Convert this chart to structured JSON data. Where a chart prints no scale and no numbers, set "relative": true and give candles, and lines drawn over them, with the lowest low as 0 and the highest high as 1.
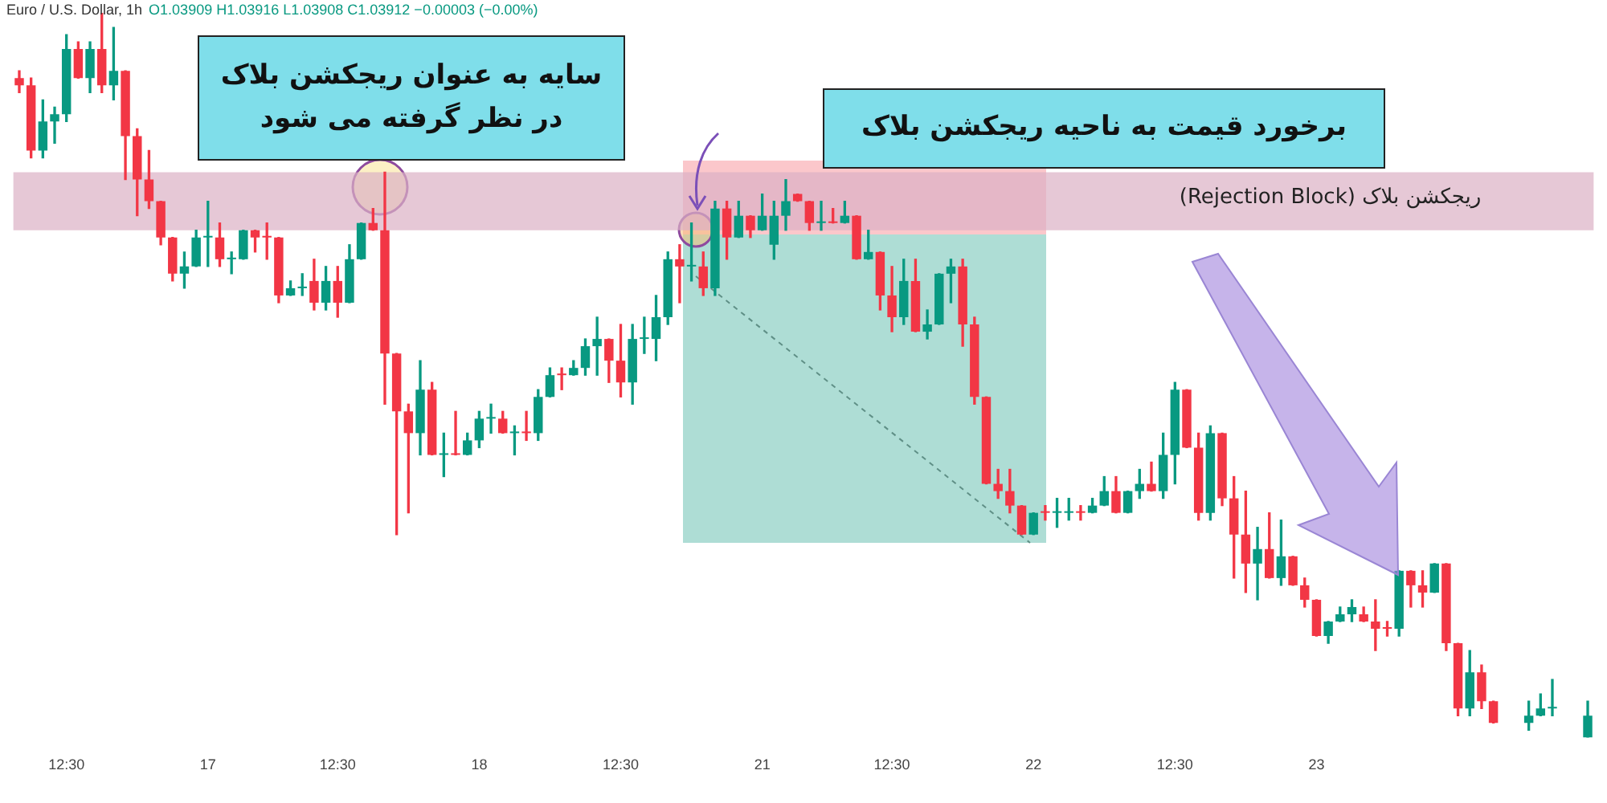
{
  "chart_data": {
    "type": "candlestick",
    "relative": true,
    "title": "Euro / U.S. Dollar, 1h",
    "subtitle": "O1.03909 H1.03916 L1.03908 C1.03912 −0.00003 (−0.00%)",
    "annotations": [
      "سایه به عنوان ریجکشن بلاک\nدر نظر گرفته می شود",
      "برخورد قیمت به ناحیه ریجکشن بلاک"
    ],
    "bands": [
      {
        "axis": "y",
        "from": 0.7,
        "to": 0.78,
        "label": "ریجکشن بلاک (Rejection Block)",
        "color": "#dcb0c4"
      }
    ],
    "categories": [
      null,
      null,
      null,
      null,
      "12:30",
      null,
      null,
      null,
      null,
      null,
      null,
      null,
      null,
      null,
      null,
      null,
      "17",
      null,
      null,
      null,
      null,
      null,
      null,
      null,
      null,
      null,
      null,
      "12:30",
      null,
      null,
      null,
      null,
      null,
      null,
      null,
      null,
      null,
      null,
      null,
      "18",
      null,
      null,
      null,
      null,
      null,
      null,
      null,
      null,
      null,
      null,
      null,
      "12:30",
      null,
      null,
      null,
      null,
      null,
      null,
      null,
      null,
      null,
      null,
      null,
      "21",
      null,
      null,
      null,
      null,
      null,
      null,
      null,
      null,
      null,
      null,
      "12:30",
      null,
      null,
      null,
      null,
      null,
      null,
      null,
      null,
      null,
      null,
      null,
      "22",
      null,
      null,
      null,
      null,
      null,
      null,
      null,
      null,
      null,
      null,
      null,
      "12:30",
      null,
      null,
      null,
      null,
      null,
      null,
      null,
      null,
      null,
      null,
      null,
      "23",
      null,
      null,
      null,
      null,
      null,
      null,
      null,
      null,
      null,
      null,
      null,
      null,
      null,
      null,
      null,
      null,
      null,
      null,
      null,
      null,
      null,
      null,
      null
    ],
    "ohlc": [
      [
        0.91,
        0.92,
        0.89,
        0.9
      ],
      [
        0.9,
        0.91,
        0.8,
        0.81
      ],
      [
        0.81,
        0.88,
        0.8,
        0.85
      ],
      [
        0.85,
        0.87,
        0.82,
        0.86
      ],
      [
        0.86,
        0.97,
        0.85,
        0.95
      ],
      [
        0.95,
        0.96,
        0.91,
        0.91
      ],
      [
        0.91,
        0.96,
        0.89,
        0.95
      ],
      [
        0.95,
        1.0,
        0.89,
        0.9
      ],
      [
        0.9,
        0.98,
        0.88,
        0.92
      ],
      [
        0.92,
        0.92,
        0.77,
        0.83
      ],
      [
        0.83,
        0.84,
        0.72,
        0.77
      ],
      [
        0.77,
        0.81,
        0.73,
        0.74
      ],
      [
        0.74,
        0.74,
        0.68,
        0.69
      ],
      [
        0.69,
        0.69,
        0.63,
        0.64
      ],
      [
        0.64,
        0.67,
        0.62,
        0.65
      ],
      [
        0.65,
        0.7,
        0.65,
        0.69
      ],
      [
        0.69,
        0.74,
        0.65,
        0.69
      ],
      [
        0.69,
        0.71,
        0.65,
        0.66
      ],
      [
        0.66,
        0.67,
        0.64,
        0.66
      ],
      [
        0.66,
        0.7,
        0.66,
        0.7
      ],
      [
        0.7,
        0.7,
        0.67,
        0.69
      ],
      [
        0.69,
        0.71,
        0.66,
        0.69
      ],
      [
        0.69,
        0.69,
        0.6,
        0.61
      ],
      [
        0.61,
        0.63,
        0.61,
        0.62
      ],
      [
        0.62,
        0.64,
        0.61,
        0.62
      ],
      [
        0.63,
        0.66,
        0.59,
        0.6
      ],
      [
        0.6,
        0.65,
        0.59,
        0.63
      ],
      [
        0.63,
        0.65,
        0.58,
        0.6
      ],
      [
        0.6,
        0.68,
        0.6,
        0.66
      ],
      [
        0.66,
        0.71,
        0.66,
        0.71
      ],
      [
        0.71,
        0.73,
        0.7,
        0.7
      ],
      [
        0.7,
        0.78,
        0.46,
        0.53
      ],
      [
        0.53,
        0.53,
        0.28,
        0.45
      ],
      [
        0.45,
        0.46,
        0.31,
        0.42
      ],
      [
        0.42,
        0.52,
        0.39,
        0.48
      ],
      [
        0.48,
        0.49,
        0.39,
        0.39
      ],
      [
        0.39,
        0.42,
        0.36,
        0.39
      ],
      [
        0.39,
        0.45,
        0.39,
        0.39
      ],
      [
        0.39,
        0.42,
        0.39,
        0.41
      ],
      [
        0.41,
        0.45,
        0.4,
        0.44
      ],
      [
        0.44,
        0.46,
        0.42,
        0.44
      ],
      [
        0.44,
        0.45,
        0.42,
        0.42
      ],
      [
        0.42,
        0.43,
        0.39,
        0.42
      ],
      [
        0.42,
        0.45,
        0.41,
        0.42
      ],
      [
        0.42,
        0.48,
        0.41,
        0.47
      ],
      [
        0.47,
        0.51,
        0.47,
        0.5
      ],
      [
        0.5,
        0.51,
        0.48,
        0.5
      ],
      [
        0.5,
        0.52,
        0.5,
        0.51
      ],
      [
        0.51,
        0.55,
        0.5,
        0.54
      ],
      [
        0.54,
        0.58,
        0.5,
        0.55
      ],
      [
        0.55,
        0.55,
        0.49,
        0.52
      ],
      [
        0.52,
        0.57,
        0.47,
        0.49
      ],
      [
        0.49,
        0.57,
        0.46,
        0.55
      ],
      [
        0.55,
        0.58,
        0.53,
        0.55
      ],
      [
        0.55,
        0.61,
        0.52,
        0.58
      ],
      [
        0.58,
        0.67,
        0.57,
        0.66
      ],
      [
        0.66,
        0.68,
        0.6,
        0.65
      ],
      [
        0.65,
        0.71,
        0.63,
        0.65
      ],
      [
        0.65,
        0.67,
        0.61,
        0.62
      ],
      [
        0.62,
        0.74,
        0.61,
        0.73
      ],
      [
        0.73,
        0.74,
        0.66,
        0.69
      ],
      [
        0.69,
        0.74,
        0.69,
        0.72
      ],
      [
        0.72,
        0.72,
        0.69,
        0.7
      ],
      [
        0.7,
        0.75,
        0.7,
        0.72
      ],
      [
        0.68,
        0.74,
        0.66,
        0.72
      ],
      [
        0.72,
        0.77,
        0.7,
        0.74
      ],
      [
        0.75,
        0.75,
        0.74,
        0.74
      ],
      [
        0.74,
        0.74,
        0.7,
        0.71
      ],
      [
        0.71,
        0.74,
        0.7,
        0.71
      ],
      [
        0.71,
        0.73,
        0.71,
        0.71
      ],
      [
        0.71,
        0.74,
        0.71,
        0.72
      ],
      [
        0.72,
        0.72,
        0.66,
        0.66
      ],
      [
        0.66,
        0.7,
        0.66,
        0.67
      ],
      [
        0.67,
        0.67,
        0.59,
        0.61
      ],
      [
        0.61,
        0.65,
        0.56,
        0.58
      ],
      [
        0.58,
        0.66,
        0.57,
        0.63
      ],
      [
        0.63,
        0.66,
        0.56,
        0.56
      ],
      [
        0.56,
        0.59,
        0.55,
        0.57
      ],
      [
        0.57,
        0.64,
        0.57,
        0.64
      ],
      [
        0.64,
        0.66,
        0.6,
        0.65
      ],
      [
        0.65,
        0.66,
        0.54,
        0.57
      ],
      [
        0.57,
        0.58,
        0.46,
        0.47
      ],
      [
        0.47,
        0.47,
        0.35,
        0.35
      ],
      [
        0.35,
        0.37,
        0.33,
        0.34
      ],
      [
        0.34,
        0.37,
        0.31,
        0.32
      ],
      [
        0.32,
        0.32,
        0.28,
        0.28
      ],
      [
        0.28,
        0.31,
        0.28,
        0.31
      ],
      [
        0.31,
        0.32,
        0.3,
        0.31
      ],
      [
        0.31,
        0.33,
        0.29,
        0.31
      ],
      [
        0.31,
        0.33,
        0.3,
        0.31
      ],
      [
        0.31,
        0.32,
        0.3,
        0.31
      ],
      [
        0.31,
        0.33,
        0.31,
        0.32
      ],
      [
        0.32,
        0.36,
        0.32,
        0.34
      ],
      [
        0.34,
        0.36,
        0.31,
        0.31
      ],
      [
        0.31,
        0.34,
        0.31,
        0.34
      ],
      [
        0.34,
        0.37,
        0.33,
        0.35
      ],
      [
        0.35,
        0.38,
        0.34,
        0.34
      ],
      [
        0.34,
        0.42,
        0.33,
        0.39
      ],
      [
        0.39,
        0.49,
        0.35,
        0.48
      ],
      [
        0.48,
        0.48,
        0.4,
        0.4
      ],
      [
        0.4,
        0.42,
        0.3,
        0.31
      ],
      [
        0.31,
        0.43,
        0.3,
        0.42
      ],
      [
        0.42,
        0.42,
        0.32,
        0.33
      ],
      [
        0.33,
        0.36,
        0.22,
        0.28
      ],
      [
        0.28,
        0.34,
        0.2,
        0.24
      ],
      [
        0.24,
        0.29,
        0.19,
        0.26
      ],
      [
        0.26,
        0.31,
        0.22,
        0.22
      ],
      [
        0.22,
        0.3,
        0.21,
        0.25
      ],
      [
        0.25,
        0.25,
        0.21,
        0.21
      ],
      [
        0.21,
        0.22,
        0.18,
        0.19
      ],
      [
        0.19,
        0.19,
        0.14,
        0.14
      ],
      [
        0.14,
        0.16,
        0.13,
        0.16
      ],
      [
        0.16,
        0.18,
        0.16,
        0.17
      ],
      [
        0.17,
        0.19,
        0.16,
        0.18
      ],
      [
        0.17,
        0.18,
        0.16,
        0.16
      ],
      [
        0.16,
        0.19,
        0.12,
        0.15
      ],
      [
        0.15,
        0.16,
        0.14,
        0.15
      ],
      [
        0.15,
        0.23,
        0.14,
        0.23
      ],
      [
        0.23,
        0.23,
        0.18,
        0.21
      ],
      [
        0.21,
        0.23,
        0.18,
        0.2
      ],
      [
        0.2,
        0.24,
        0.2,
        0.24
      ],
      [
        0.24,
        0.24,
        0.12,
        0.13
      ],
      [
        0.13,
        0.13,
        0.03,
        0.04
      ],
      [
        0.04,
        0.12,
        0.03,
        0.09
      ],
      [
        0.09,
        0.1,
        0.04,
        0.05
      ],
      [
        0.05,
        0.05,
        0.02,
        0.02
      ],
      null,
      null,
      [
        0.02,
        0.05,
        0.01,
        0.03
      ],
      [
        0.03,
        0.06,
        0.03,
        0.04
      ],
      [
        0.04,
        0.08,
        0.03,
        0.04
      ],
      null,
      null,
      [
        0,
        0.05,
        0,
        0.03
      ]
    ],
    "colors": [
      "#f23645",
      "#f23645",
      "#089981",
      "#089981",
      "#089981",
      "#f23645",
      "#089981",
      "#f23645",
      "#089981",
      "#f23645",
      "#f23645",
      "#f23645",
      "#f23645",
      "#f23645",
      "#089981",
      "#089981",
      "#089981",
      "#f23645",
      "#089981",
      "#089981",
      "#f23645",
      "#f23645",
      "#f23645",
      "#089981",
      "#089981",
      "#f23645",
      "#089981",
      "#f23645",
      "#089981",
      "#089981",
      "#f23645",
      "#f23645",
      "#f23645",
      "#f23645",
      "#089981",
      "#f23645",
      "#089981",
      "#f23645",
      "#089981",
      "#089981",
      "#089981",
      "#f23645",
      "#089981",
      "#f23645",
      "#089981",
      "#089981",
      "#f23645",
      "#089981",
      "#089981",
      "#089981",
      "#f23645",
      "#f23645",
      "#089981",
      "#089981",
      "#089981",
      "#089981",
      "#f23645",
      "#089981",
      "#f23645",
      "#089981",
      "#f23645",
      "#089981",
      "#f23645",
      "#089981",
      "#089981",
      "#089981",
      "#f23645",
      "#f23645",
      "#089981",
      "#f23645",
      "#089981",
      "#f23645",
      "#089981",
      "#f23645",
      "#f23645",
      "#089981",
      "#f23645",
      "#089981",
      "#089981",
      "#089981",
      "#f23645",
      "#f23645",
      "#f23645",
      "#f23645",
      "#f23645",
      "#f23645",
      "#089981",
      "#f23645",
      "#089981",
      "#089981",
      "#f23645",
      "#089981",
      "#089981",
      "#f23645",
      "#089981",
      "#089981",
      "#f23645",
      "#089981",
      "#089981",
      "#f23645",
      "#f23645",
      "#089981",
      "#f23645",
      "#f23645",
      "#f23645",
      "#089981",
      "#f23645",
      "#089981",
      "#f23645",
      "#f23645",
      "#f23645",
      "#089981",
      "#089981",
      "#089981",
      "#f23645",
      "#f23645",
      "#f23645",
      "#089981",
      "#f23645",
      "#f23645",
      "#089981",
      "#f23645",
      "#f23645",
      "#089981",
      "#f23645",
      "#f23645",
      null,
      null,
      "#089981",
      "#089981",
      "#089981",
      null,
      null,
      "#089981"
    ]
  }
}
